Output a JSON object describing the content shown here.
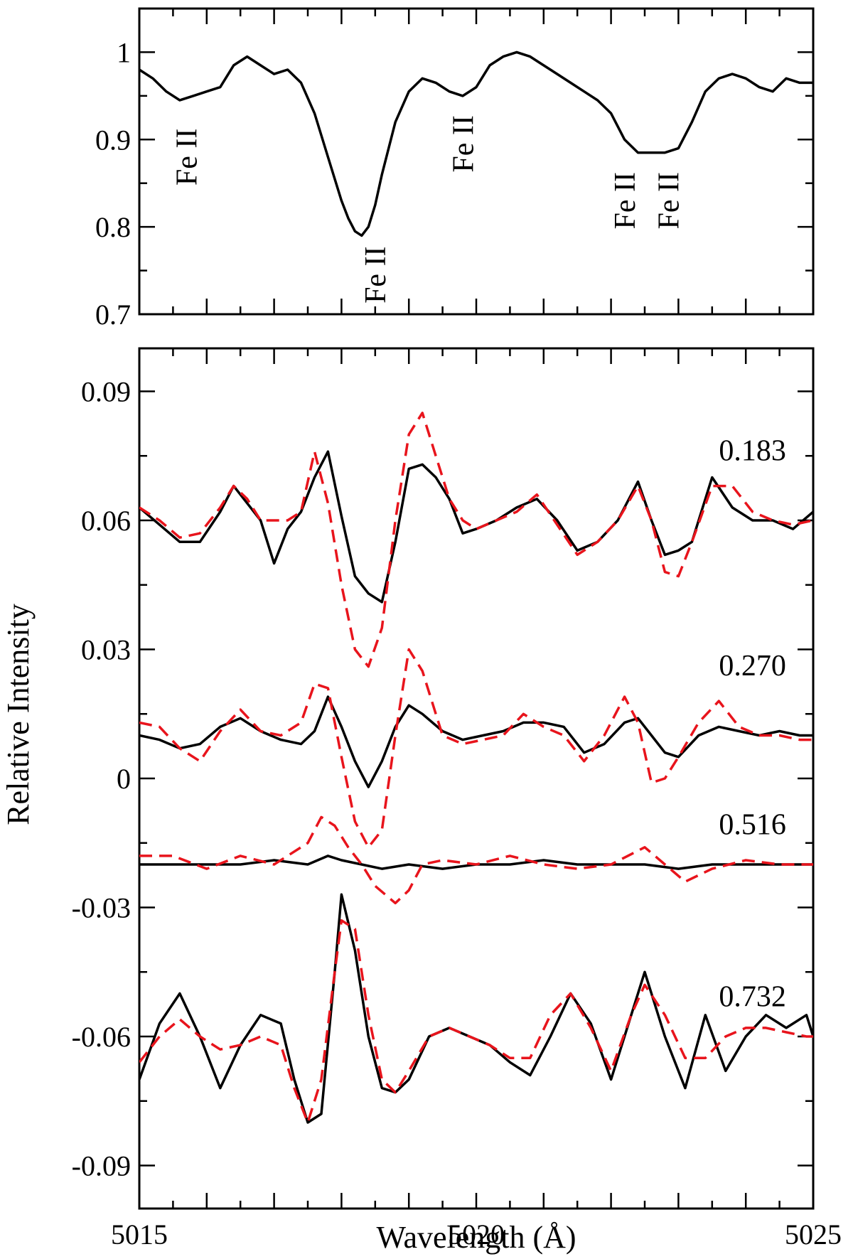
{
  "chart_data": [
    {
      "type": "line",
      "panel": "top",
      "xlim": [
        5015,
        5025
      ],
      "ylim": [
        0.7,
        1.05
      ],
      "yticks": [
        "0.7",
        "0.8",
        "0.9",
        "1"
      ],
      "line_labels": [
        {
          "text": "Fe II",
          "x": 5015.85,
          "y": 0.88
        },
        {
          "text": "Fe II",
          "x": 5018.65,
          "y": 0.745
        },
        {
          "text": "Fe II",
          "x": 5019.95,
          "y": 0.895
        },
        {
          "text": "Fe II",
          "x": 5022.35,
          "y": 0.83
        },
        {
          "text": "Fe II",
          "x": 5023.0,
          "y": 0.83
        }
      ],
      "series": [
        {
          "color": "#000000",
          "x": [
            5015,
            5015.2,
            5015.4,
            5015.6,
            5015.8,
            5016.0,
            5016.2,
            5016.4,
            5016.6,
            5016.8,
            5017.0,
            5017.2,
            5017.4,
            5017.6,
            5017.8,
            5018.0,
            5018.1,
            5018.2,
            5018.3,
            5018.4,
            5018.5,
            5018.6,
            5018.8,
            5019.0,
            5019.2,
            5019.4,
            5019.6,
            5019.8,
            5020.0,
            5020.2,
            5020.4,
            5020.6,
            5020.8,
            5021.0,
            5021.2,
            5021.4,
            5021.6,
            5021.8,
            5022.0,
            5022.2,
            5022.4,
            5022.6,
            5022.8,
            5023.0,
            5023.2,
            5023.4,
            5023.6,
            5023.8,
            5024.0,
            5024.2,
            5024.4,
            5024.6,
            5024.8,
            5025.0
          ],
          "y": [
            0.98,
            0.97,
            0.955,
            0.945,
            0.95,
            0.955,
            0.96,
            0.985,
            0.995,
            0.985,
            0.975,
            0.98,
            0.965,
            0.93,
            0.88,
            0.83,
            0.81,
            0.795,
            0.79,
            0.8,
            0.825,
            0.86,
            0.92,
            0.955,
            0.97,
            0.965,
            0.955,
            0.95,
            0.96,
            0.985,
            0.995,
            1.0,
            0.995,
            0.985,
            0.975,
            0.965,
            0.955,
            0.945,
            0.93,
            0.9,
            0.885,
            0.885,
            0.885,
            0.89,
            0.92,
            0.955,
            0.97,
            0.975,
            0.97,
            0.96,
            0.955,
            0.97,
            0.965,
            0.965
          ]
        }
      ]
    },
    {
      "type": "line",
      "panel": "bottom",
      "xlim": [
        5015,
        5025
      ],
      "ylim": [
        -0.1,
        0.1
      ],
      "xticks": [
        "5015",
        "5020",
        "5025"
      ],
      "yticks": [
        "-0.09",
        "-0.06",
        "-0.03",
        "0",
        "0.03",
        "0.06",
        "0.09"
      ],
      "xlabel": "Wavelength (Å)",
      "ylabel": "Relative Intensity",
      "phase_labels": [
        {
          "text": "0.183",
          "x": 5024.1,
          "y": 0.074
        },
        {
          "text": "0.270",
          "x": 5024.1,
          "y": 0.024
        },
        {
          "text": "0.516",
          "x": 5024.1,
          "y": -0.013
        },
        {
          "text": "0.732",
          "x": 5024.1,
          "y": -0.053
        }
      ],
      "series": [
        {
          "group": "0.183",
          "color": "#000000",
          "dash": "solid",
          "x": [
            5015,
            5015.3,
            5015.6,
            5015.9,
            5016.2,
            5016.4,
            5016.6,
            5016.8,
            5017.0,
            5017.2,
            5017.4,
            5017.6,
            5017.8,
            5018.0,
            5018.2,
            5018.4,
            5018.6,
            5018.8,
            5019.0,
            5019.2,
            5019.4,
            5019.6,
            5019.8,
            5020.0,
            5020.3,
            5020.6,
            5020.9,
            5021.2,
            5021.5,
            5021.8,
            5022.1,
            5022.4,
            5022.6,
            5022.8,
            5023.0,
            5023.2,
            5023.5,
            5023.8,
            5024.1,
            5024.4,
            5024.7,
            5025.0
          ],
          "y": [
            0.063,
            0.059,
            0.055,
            0.055,
            0.062,
            0.068,
            0.064,
            0.06,
            0.05,
            0.058,
            0.062,
            0.07,
            0.076,
            0.061,
            0.047,
            0.043,
            0.041,
            0.055,
            0.072,
            0.073,
            0.07,
            0.065,
            0.057,
            0.058,
            0.06,
            0.063,
            0.065,
            0.06,
            0.053,
            0.055,
            0.06,
            0.069,
            0.06,
            0.052,
            0.053,
            0.055,
            0.07,
            0.063,
            0.06,
            0.06,
            0.058,
            0.062
          ]
        },
        {
          "group": "0.183",
          "color": "#e8141c",
          "dash": "dashed",
          "x": [
            5015,
            5015.3,
            5015.6,
            5015.9,
            5016.2,
            5016.4,
            5016.6,
            5016.8,
            5017.0,
            5017.2,
            5017.4,
            5017.6,
            5017.8,
            5018.0,
            5018.2,
            5018.4,
            5018.6,
            5018.8,
            5019.0,
            5019.2,
            5019.4,
            5019.6,
            5019.8,
            5020.0,
            5020.3,
            5020.6,
            5020.9,
            5021.2,
            5021.5,
            5021.8,
            5022.1,
            5022.4,
            5022.6,
            5022.8,
            5023.0,
            5023.2,
            5023.5,
            5023.8,
            5024.1,
            5024.4,
            5024.7,
            5025.0
          ],
          "y": [
            0.063,
            0.06,
            0.056,
            0.057,
            0.063,
            0.068,
            0.065,
            0.06,
            0.06,
            0.06,
            0.062,
            0.076,
            0.064,
            0.045,
            0.03,
            0.026,
            0.035,
            0.06,
            0.08,
            0.085,
            0.075,
            0.065,
            0.06,
            0.058,
            0.06,
            0.062,
            0.066,
            0.059,
            0.052,
            0.055,
            0.06,
            0.068,
            0.06,
            0.048,
            0.047,
            0.055,
            0.068,
            0.068,
            0.062,
            0.06,
            0.059,
            0.06
          ]
        },
        {
          "group": "0.270",
          "color": "#000000",
          "dash": "solid",
          "x": [
            5015,
            5015.3,
            5015.6,
            5015.9,
            5016.2,
            5016.5,
            5016.8,
            5017.1,
            5017.4,
            5017.6,
            5017.8,
            5018.0,
            5018.2,
            5018.4,
            5018.6,
            5018.8,
            5019.0,
            5019.2,
            5019.5,
            5019.8,
            5020.1,
            5020.4,
            5020.7,
            5021.0,
            5021.3,
            5021.6,
            5021.9,
            5022.2,
            5022.4,
            5022.6,
            5022.8,
            5023.0,
            5023.3,
            5023.6,
            5023.9,
            5024.2,
            5024.5,
            5024.8,
            5025.0
          ],
          "y": [
            0.01,
            0.009,
            0.007,
            0.008,
            0.012,
            0.014,
            0.011,
            0.009,
            0.008,
            0.011,
            0.019,
            0.012,
            0.004,
            -0.002,
            0.004,
            0.012,
            0.017,
            0.015,
            0.011,
            0.009,
            0.01,
            0.011,
            0.013,
            0.013,
            0.012,
            0.006,
            0.008,
            0.013,
            0.014,
            0.01,
            0.006,
            0.005,
            0.01,
            0.012,
            0.011,
            0.01,
            0.011,
            0.01,
            0.01
          ]
        },
        {
          "group": "0.270",
          "color": "#e8141c",
          "dash": "dashed",
          "x": [
            5015,
            5015.3,
            5015.6,
            5015.9,
            5016.2,
            5016.5,
            5016.8,
            5017.1,
            5017.4,
            5017.6,
            5017.8,
            5018.0,
            5018.2,
            5018.4,
            5018.6,
            5018.8,
            5019.0,
            5019.2,
            5019.5,
            5019.8,
            5020.1,
            5020.4,
            5020.7,
            5021.0,
            5021.3,
            5021.6,
            5021.9,
            5022.2,
            5022.4,
            5022.6,
            5022.8,
            5023.0,
            5023.3,
            5023.6,
            5023.9,
            5024.2,
            5024.5,
            5024.8,
            5025.0
          ],
          "y": [
            0.013,
            0.012,
            0.007,
            0.004,
            0.011,
            0.016,
            0.011,
            0.01,
            0.013,
            0.022,
            0.021,
            0.005,
            -0.01,
            -0.016,
            -0.012,
            0.01,
            0.03,
            0.025,
            0.01,
            0.008,
            0.009,
            0.01,
            0.015,
            0.012,
            0.01,
            0.004,
            0.01,
            0.019,
            0.013,
            -0.001,
            0.0,
            0.005,
            0.013,
            0.018,
            0.012,
            0.01,
            0.01,
            0.009,
            0.009
          ]
        },
        {
          "group": "0.516",
          "color": "#000000",
          "dash": "solid",
          "x": [
            5015,
            5015.5,
            5016.0,
            5016.5,
            5017.0,
            5017.5,
            5017.8,
            5018.0,
            5018.3,
            5018.6,
            5019.0,
            5019.5,
            5020.0,
            5020.5,
            5021.0,
            5021.5,
            5022.0,
            5022.5,
            5023.0,
            5023.5,
            5024.0,
            5024.5,
            5025.0
          ],
          "y": [
            -0.02,
            -0.02,
            -0.02,
            -0.02,
            -0.019,
            -0.02,
            -0.018,
            -0.019,
            -0.02,
            -0.021,
            -0.02,
            -0.021,
            -0.02,
            -0.02,
            -0.019,
            -0.02,
            -0.02,
            -0.02,
            -0.021,
            -0.02,
            -0.02,
            -0.02,
            -0.02
          ]
        },
        {
          "group": "0.516",
          "color": "#e8141c",
          "dash": "dashed",
          "x": [
            5015,
            5015.5,
            5016.0,
            5016.5,
            5017.0,
            5017.5,
            5017.7,
            5017.9,
            5018.1,
            5018.3,
            5018.5,
            5018.8,
            5019.0,
            5019.2,
            5019.5,
            5020.0,
            5020.5,
            5021.0,
            5021.5,
            5022.0,
            5022.5,
            5022.8,
            5023.1,
            5023.5,
            5024.0,
            5024.5,
            5025.0
          ],
          "y": [
            -0.018,
            -0.018,
            -0.021,
            -0.018,
            -0.02,
            -0.015,
            -0.009,
            -0.011,
            -0.016,
            -0.02,
            -0.025,
            -0.029,
            -0.026,
            -0.02,
            -0.019,
            -0.02,
            -0.018,
            -0.02,
            -0.021,
            -0.02,
            -0.016,
            -0.02,
            -0.024,
            -0.021,
            -0.019,
            -0.02,
            -0.02
          ]
        },
        {
          "group": "0.732",
          "color": "#000000",
          "dash": "solid",
          "x": [
            5015,
            5015.3,
            5015.6,
            5015.9,
            5016.2,
            5016.5,
            5016.8,
            5017.1,
            5017.3,
            5017.5,
            5017.7,
            5017.9,
            5018.0,
            5018.2,
            5018.4,
            5018.6,
            5018.8,
            5019.0,
            5019.3,
            5019.6,
            5019.9,
            5020.2,
            5020.5,
            5020.8,
            5021.1,
            5021.4,
            5021.7,
            5022.0,
            5022.3,
            5022.5,
            5022.8,
            5023.1,
            5023.4,
            5023.7,
            5024.0,
            5024.3,
            5024.6,
            5024.9,
            5025.0
          ],
          "y": [
            -0.07,
            -0.057,
            -0.05,
            -0.06,
            -0.072,
            -0.062,
            -0.055,
            -0.057,
            -0.07,
            -0.08,
            -0.078,
            -0.045,
            -0.027,
            -0.04,
            -0.06,
            -0.072,
            -0.073,
            -0.07,
            -0.06,
            -0.058,
            -0.06,
            -0.062,
            -0.066,
            -0.069,
            -0.06,
            -0.05,
            -0.057,
            -0.07,
            -0.055,
            -0.045,
            -0.06,
            -0.072,
            -0.055,
            -0.068,
            -0.06,
            -0.055,
            -0.058,
            -0.055,
            -0.06
          ]
        },
        {
          "group": "0.732",
          "color": "#e8141c",
          "dash": "dashed",
          "x": [
            5015,
            5015.3,
            5015.6,
            5015.9,
            5016.2,
            5016.5,
            5016.8,
            5017.1,
            5017.3,
            5017.5,
            5017.7,
            5017.9,
            5018.0,
            5018.2,
            5018.4,
            5018.6,
            5018.8,
            5019.0,
            5019.3,
            5019.6,
            5019.9,
            5020.2,
            5020.5,
            5020.8,
            5021.1,
            5021.4,
            5021.7,
            5022.0,
            5022.3,
            5022.5,
            5022.8,
            5023.1,
            5023.4,
            5023.7,
            5024.0,
            5024.3,
            5024.6,
            5024.9,
            5025.0
          ],
          "y": [
            -0.066,
            -0.06,
            -0.056,
            -0.06,
            -0.063,
            -0.062,
            -0.06,
            -0.062,
            -0.072,
            -0.08,
            -0.07,
            -0.045,
            -0.033,
            -0.035,
            -0.055,
            -0.07,
            -0.073,
            -0.068,
            -0.06,
            -0.058,
            -0.06,
            -0.062,
            -0.065,
            -0.065,
            -0.055,
            -0.05,
            -0.058,
            -0.068,
            -0.055,
            -0.048,
            -0.055,
            -0.065,
            -0.065,
            -0.06,
            -0.058,
            -0.058,
            -0.059,
            -0.06,
            -0.06
          ]
        }
      ]
    }
  ]
}
